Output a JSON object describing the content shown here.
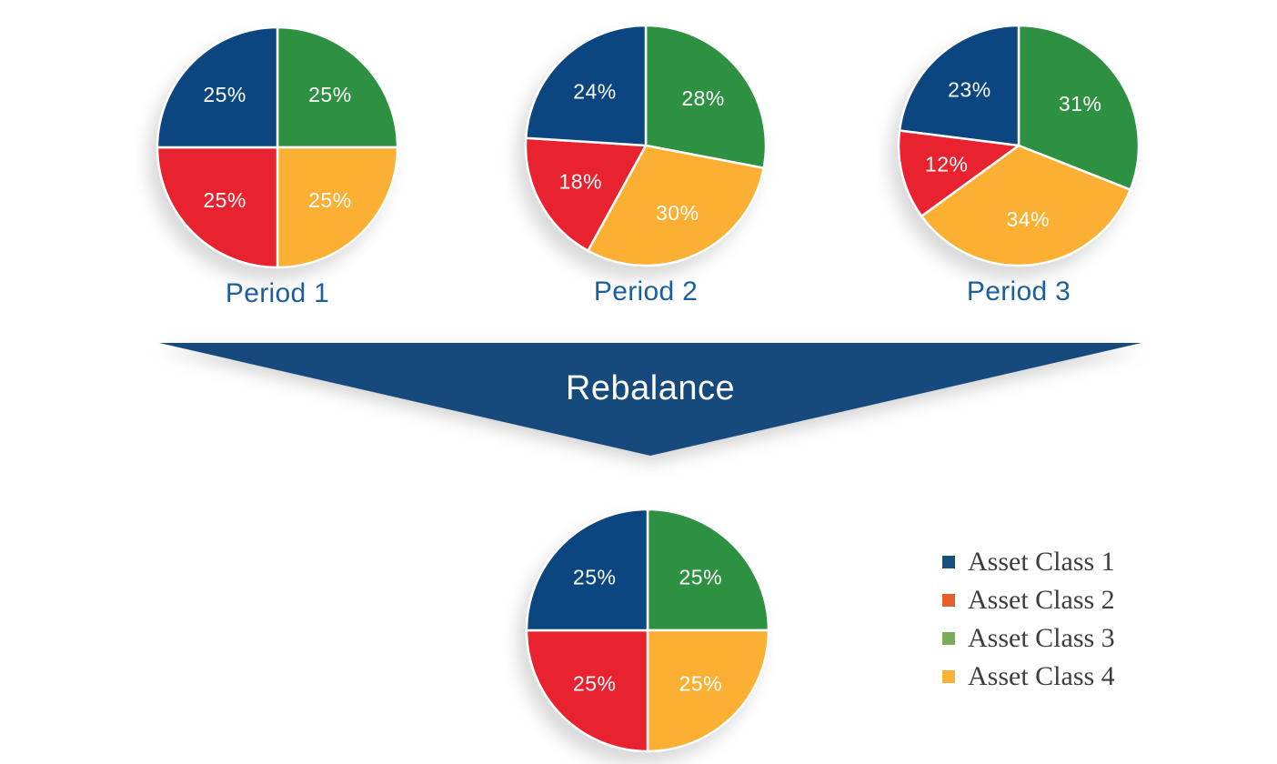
{
  "arrow": {
    "label": "Rebalance",
    "color": "#16497C",
    "text_color": "#ffffff"
  },
  "palette": {
    "asset_class_1_blue": "#0B4680",
    "asset_class_2_red": "#E8222E",
    "asset_class_3_green": "#2E9142",
    "asset_class_4_yellow": "#FBB034",
    "period_title_blue": "#1C5F9C",
    "legend_text": "#3d3d3d"
  },
  "legend": {
    "items": [
      {
        "label": "Asset Class 1",
        "swatch_color": "#15507F"
      },
      {
        "label": "Asset Class 2",
        "swatch_color": "#E45F2B"
      },
      {
        "label": "Asset Class 3",
        "swatch_color": "#7BAC5C"
      },
      {
        "label": "Asset Class 4",
        "swatch_color": "#F9B233"
      }
    ]
  },
  "chart_data": [
    {
      "type": "pie",
      "title": "Period 1",
      "start_angle_deg": 0,
      "direction": "clockwise",
      "slices": [
        {
          "name": "Asset Class 3",
          "value": 25,
          "label": "25%",
          "color": "#2E9142"
        },
        {
          "name": "Asset Class 4",
          "value": 25,
          "label": "25%",
          "color": "#FBB034"
        },
        {
          "name": "Asset Class 2",
          "value": 25,
          "label": "25%",
          "color": "#E8222E"
        },
        {
          "name": "Asset Class 1",
          "value": 25,
          "label": "25%",
          "color": "#0B4680"
        }
      ]
    },
    {
      "type": "pie",
      "title": "Period 2",
      "start_angle_deg": 0,
      "direction": "clockwise",
      "slices": [
        {
          "name": "Asset Class 3",
          "value": 28,
          "label": "28%",
          "color": "#2E9142"
        },
        {
          "name": "Asset Class 4",
          "value": 30,
          "label": "30%",
          "color": "#FBB034"
        },
        {
          "name": "Asset Class 2",
          "value": 18,
          "label": "18%",
          "color": "#E8222E"
        },
        {
          "name": "Asset Class 1",
          "value": 24,
          "label": "24%",
          "color": "#0B4680"
        }
      ]
    },
    {
      "type": "pie",
      "title": "Period 3",
      "start_angle_deg": 0,
      "direction": "clockwise",
      "slices": [
        {
          "name": "Asset Class 3",
          "value": 31,
          "label": "31%",
          "color": "#2E9142"
        },
        {
          "name": "Asset Class 4",
          "value": 34,
          "label": "34%",
          "color": "#FBB034"
        },
        {
          "name": "Asset Class 2",
          "value": 12,
          "label": "12%",
          "color": "#E8222E"
        },
        {
          "name": "Asset Class 1",
          "value": 23,
          "label": "23%",
          "color": "#0B4680"
        }
      ]
    },
    {
      "type": "pie",
      "title": "",
      "start_angle_deg": 0,
      "direction": "clockwise",
      "slices": [
        {
          "name": "Asset Class 3",
          "value": 25,
          "label": "25%",
          "color": "#2E9142"
        },
        {
          "name": "Asset Class 4",
          "value": 25,
          "label": "25%",
          "color": "#FBB034"
        },
        {
          "name": "Asset Class 2",
          "value": 25,
          "label": "25%",
          "color": "#E8222E"
        },
        {
          "name": "Asset Class 1",
          "value": 25,
          "label": "25%",
          "color": "#0B4680"
        }
      ]
    }
  ]
}
